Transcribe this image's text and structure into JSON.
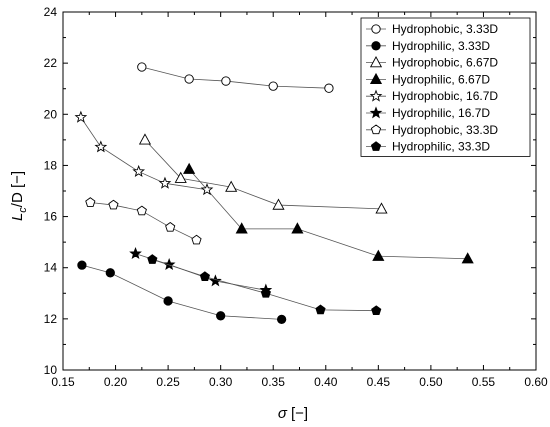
{
  "chart_data": {
    "type": "scatter",
    "title": "",
    "xlabel_symbol": "σ",
    "xlabel_unit": "[−]",
    "ylabel_main": "L",
    "ylabel_sub": "c",
    "ylabel_rest": "/D [−]",
    "xlim": [
      0.15,
      0.6
    ],
    "ylim": [
      10,
      24
    ],
    "xticks": [
      0.15,
      0.2,
      0.25,
      0.3,
      0.35,
      0.4,
      0.45,
      0.5,
      0.55,
      0.6
    ],
    "xtick_labels": [
      "0.15",
      "0.20",
      "0.25",
      "0.30",
      "0.35",
      "0.40",
      "0.45",
      "0.50",
      "0.55",
      "0.60"
    ],
    "yticks": [
      10,
      12,
      14,
      16,
      18,
      20,
      22,
      24
    ],
    "ytick_labels": [
      "10",
      "12",
      "14",
      "16",
      "18",
      "20",
      "22",
      "24"
    ],
    "grid": false,
    "legend_position": "top-right",
    "series": [
      {
        "name": "Hydrophobic, 3.33D",
        "marker": "circle",
        "filled": false,
        "x": [
          0.225,
          0.27,
          0.305,
          0.35,
          0.403
        ],
        "y": [
          21.85,
          21.38,
          21.3,
          21.1,
          21.02
        ]
      },
      {
        "name": "Hydrophilic, 3.33D",
        "marker": "circle",
        "filled": true,
        "x": [
          0.168,
          0.195,
          0.25,
          0.3,
          0.358
        ],
        "y": [
          14.1,
          13.8,
          12.7,
          12.12,
          11.98
        ]
      },
      {
        "name": "Hydrophobic, 6.67D",
        "marker": "triangle",
        "filled": false,
        "x": [
          0.228,
          0.262,
          0.31,
          0.355,
          0.453
        ],
        "y": [
          19.0,
          17.5,
          17.15,
          16.45,
          16.3
        ]
      },
      {
        "name": "Hydrophilic, 6.67D",
        "marker": "triangle",
        "filled": true,
        "x": [
          0.27,
          0.32,
          0.373,
          0.45,
          0.535
        ],
        "y": [
          17.85,
          15.52,
          15.52,
          14.45,
          14.35
        ]
      },
      {
        "name": "Hydrophobic, 16.7D",
        "marker": "star",
        "filled": false,
        "x": [
          0.167,
          0.186,
          0.222,
          0.247,
          0.287
        ],
        "y": [
          19.88,
          18.72,
          17.76,
          17.3,
          17.05
        ]
      },
      {
        "name": "Hydrophilic, 16.7D",
        "marker": "star",
        "filled": true,
        "x": [
          0.219,
          0.251,
          0.295,
          0.343
        ],
        "y": [
          14.55,
          14.12,
          13.48,
          13.12
        ]
      },
      {
        "name": "Hydrophobic, 33.3D",
        "marker": "pentagon",
        "filled": false,
        "x": [
          0.176,
          0.198,
          0.225,
          0.252,
          0.277
        ],
        "y": [
          16.55,
          16.45,
          16.22,
          15.58,
          15.08
        ]
      },
      {
        "name": "Hydrophilic, 33.3D",
        "marker": "pentagon",
        "filled": true,
        "x": [
          0.235,
          0.285,
          0.343,
          0.395,
          0.448
        ],
        "y": [
          14.32,
          13.65,
          13.0,
          12.35,
          12.32
        ]
      }
    ]
  }
}
